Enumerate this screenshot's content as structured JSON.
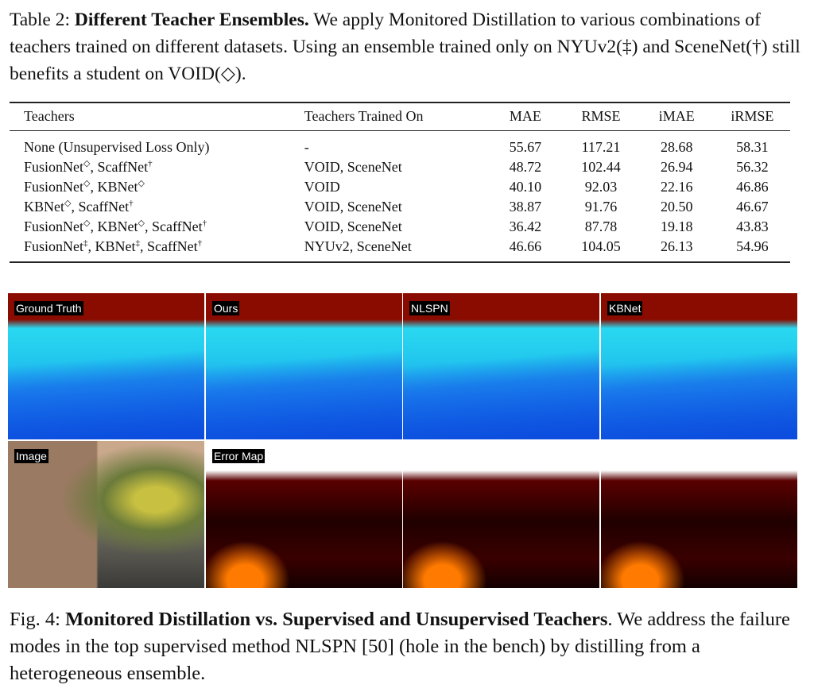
{
  "table": {
    "caption_label": "Table 2:",
    "caption_title": "Different Teacher Ensembles.",
    "caption_text": "We apply Monitored Distillation to various combinations of teachers trained on different datasets. Using an ensemble trained only on NYUv2(‡) and SceneNet(†) still benefits a student on VOID(◇).",
    "columns": [
      "Teachers",
      "Teachers Trained On",
      "MAE",
      "RMSE",
      "iMAE",
      "iRMSE"
    ],
    "rows": [
      [
        "None (Unsupervised Loss Only)",
        "-",
        "55.67",
        "117.21",
        "28.68",
        "58.31"
      ],
      [
        "FusionNet◇, ScaffNet†",
        "VOID, SceneNet",
        "48.72",
        "102.44",
        "26.94",
        "56.32"
      ],
      [
        "FusionNet◇, KBNet◇",
        "VOID",
        "40.10",
        "92.03",
        "22.16",
        "46.86"
      ],
      [
        "KBNet◇, ScaffNet†",
        "VOID, SceneNet",
        "38.87",
        "91.76",
        "20.50",
        "46.67"
      ],
      [
        "FusionNet◇, KBNet◇, ScaffNet†",
        "VOID, SceneNet",
        "36.42",
        "87.78",
        "19.18",
        "43.83"
      ],
      [
        "FusionNet‡, KBNet‡, ScaffNet†",
        "NYUv2, SceneNet",
        "46.66",
        "104.05",
        "26.13",
        "54.96"
      ]
    ]
  },
  "figure": {
    "panels": [
      "Ground Truth",
      "Ours",
      "NLSPN",
      "KBNet",
      "Image",
      "Error Map"
    ],
    "caption_label": "Fig. 4:",
    "caption_title": "Monitored Distillation vs. Supervised and Unsupervised Teachers",
    "caption_text": ". We address the failure modes in the top supervised method NLSPN [50] (hole in the bench) by distilling from a heterogeneous ensemble."
  }
}
